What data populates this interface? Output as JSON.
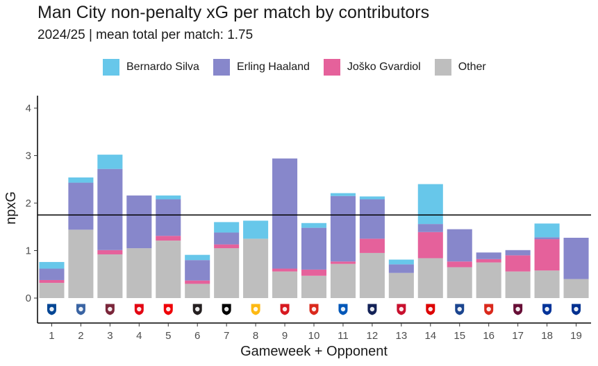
{
  "chart_data": {
    "type": "stacked-bar",
    "title": "Man City non-penalty xG per match by contributors",
    "subtitle": "2024/25 | mean total per match: 1.75",
    "xlabel": "Gameweek + Opponent",
    "ylabel": "npxG",
    "ylim": [
      -0.5,
      4.2
    ],
    "yticks": [
      0,
      1,
      2,
      3,
      4
    ],
    "mean_line": 1.75,
    "legend_position": "top",
    "categories": [
      "1",
      "2",
      "3",
      "4",
      "5",
      "6",
      "7",
      "8",
      "9",
      "10",
      "11",
      "12",
      "13",
      "14",
      "15",
      "16",
      "17",
      "18",
      "19"
    ],
    "series": [
      {
        "name": "Other",
        "color": "#bebebe",
        "values": [
          0.32,
          1.44,
          0.92,
          1.05,
          1.21,
          0.3,
          1.05,
          1.25,
          0.56,
          0.47,
          0.72,
          0.95,
          0.53,
          0.84,
          0.65,
          0.75,
          0.56,
          0.58,
          0.4
        ]
      },
      {
        "name": "Joško Gvardiol",
        "color": "#e5619b",
        "values": [
          0.06,
          0.0,
          0.09,
          0.0,
          0.1,
          0.07,
          0.08,
          0.0,
          0.06,
          0.13,
          0.05,
          0.3,
          0.0,
          0.55,
          0.12,
          0.07,
          0.34,
          0.66,
          0.0
        ]
      },
      {
        "name": "Erling Haaland",
        "color": "#8787cb",
        "values": [
          0.24,
          0.99,
          1.71,
          1.11,
          0.77,
          0.43,
          0.25,
          0.0,
          2.32,
          0.88,
          1.38,
          0.83,
          0.18,
          0.17,
          0.68,
          0.14,
          0.11,
          0.04,
          0.87
        ]
      },
      {
        "name": "Bernardo Silva",
        "color": "#67c7ea",
        "values": [
          0.14,
          0.11,
          0.3,
          0.0,
          0.08,
          0.11,
          0.22,
          0.38,
          0.0,
          0.1,
          0.06,
          0.06,
          0.1,
          0.84,
          0.0,
          0.0,
          0.0,
          0.29,
          0.0
        ]
      }
    ],
    "legend_order": [
      "Bernardo Silva",
      "Erling Haaland",
      "Joško Gvardiol",
      "Other"
    ],
    "opponent_icons": [
      {
        "name": "chelsea-crest-icon",
        "color": "#034694"
      },
      {
        "name": "ipswich-crest-icon",
        "color": "#3a64a3"
      },
      {
        "name": "west-ham-crest-icon",
        "color": "#7a263a"
      },
      {
        "name": "brentford-crest-icon",
        "color": "#e30613"
      },
      {
        "name": "arsenal-crest-icon",
        "color": "#ef0107"
      },
      {
        "name": "newcastle-crest-icon",
        "color": "#241f20"
      },
      {
        "name": "fulham-crest-icon",
        "color": "#000000"
      },
      {
        "name": "wolves-crest-icon",
        "color": "#fdb913"
      },
      {
        "name": "southampton-crest-icon",
        "color": "#d71920"
      },
      {
        "name": "bournemouth-crest-icon",
        "color": "#da291c"
      },
      {
        "name": "brighton-crest-icon",
        "color": "#0057b8"
      },
      {
        "name": "tottenham-crest-icon",
        "color": "#132257"
      },
      {
        "name": "liverpool-crest-icon",
        "color": "#c8102e"
      },
      {
        "name": "nottingham-forest-crest-icon",
        "color": "#dd0000"
      },
      {
        "name": "crystal-palace-crest-icon",
        "color": "#1b458f"
      },
      {
        "name": "manchester-united-crest-icon",
        "color": "#da291c"
      },
      {
        "name": "aston-villa-crest-icon",
        "color": "#670e36"
      },
      {
        "name": "everton-crest-icon",
        "color": "#003399"
      },
      {
        "name": "leicester-crest-icon",
        "color": "#003090"
      }
    ]
  }
}
